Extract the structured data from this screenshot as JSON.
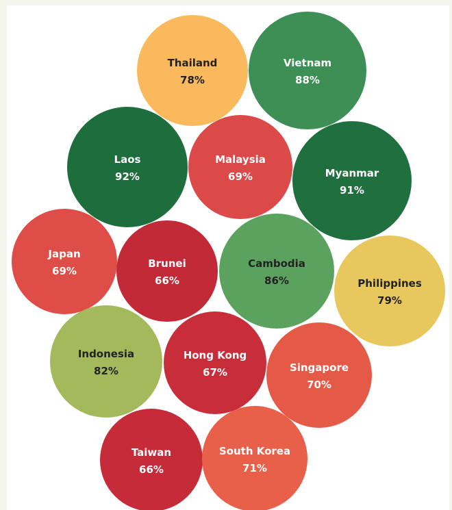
{
  "chart_data": {
    "type": "bubble",
    "title": "",
    "xlabel": "",
    "ylabel": "",
    "legend": "none",
    "grid": false,
    "categories": [
      "Thailand",
      "Vietnam",
      "Laos",
      "Malaysia",
      "Myanmar",
      "Japan",
      "Brunei",
      "Cambodia",
      "Philippines",
      "Indonesia",
      "Hong Kong",
      "Singapore",
      "Taiwan",
      "South Korea"
    ],
    "values": [
      78,
      88,
      92,
      69,
      91,
      69,
      66,
      86,
      79,
      82,
      67,
      70,
      66,
      71
    ],
    "labels": [
      "78%",
      "88%",
      "92%",
      "69%",
      "91%",
      "69%",
      "66%",
      "86%",
      "79%",
      "82%",
      "67%",
      "70%",
      "66%",
      "71%"
    ],
    "colors": [
      "#f9b95c",
      "#3d8f55",
      "#1e6e3d",
      "#dc4949",
      "#20703f",
      "#de4d47",
      "#c32a38",
      "#5aa25d",
      "#e8c75d",
      "#a3b95b",
      "#c82e3a",
      "#e55a47",
      "#c52b39",
      "#e8604a"
    ],
    "label_colors": [
      "#222222",
      "#ffffff",
      "#ffffff",
      "#ffffff",
      "#ffffff",
      "#ffffff",
      "#ffffff",
      "#222222",
      "#222222",
      "#222222",
      "#ffffff",
      "#ffffff",
      "#ffffff",
      "#ffffff"
    ],
    "color_scale": "diverging red-to-green by value"
  }
}
